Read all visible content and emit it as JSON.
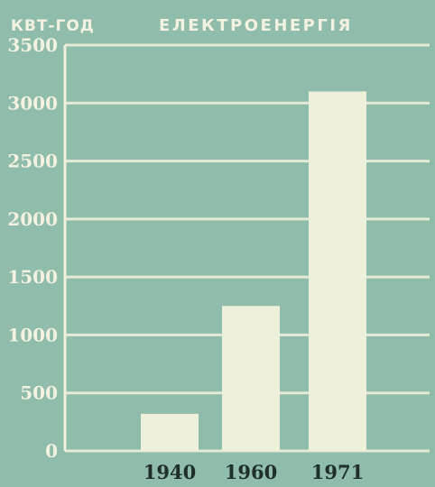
{
  "chart_data": {
    "type": "bar",
    "title": "ЕЛЕКТРОЕНЕРГІЯ",
    "ylabel": "КВТ-ГОД",
    "xlabel": "",
    "categories": [
      "1940",
      "1960",
      "1971"
    ],
    "values": [
      320,
      1250,
      3100
    ],
    "ylim": [
      0,
      3500
    ],
    "yticks": [
      "0",
      "500",
      "1000",
      "1500",
      "2000",
      "2500",
      "3000",
      "3500"
    ],
    "grid": true,
    "legend": "none"
  },
  "colors": {
    "background": "#8fbcab",
    "bar": "#eff0da",
    "grid": "#eff0da",
    "label": "#f3f2e1"
  }
}
